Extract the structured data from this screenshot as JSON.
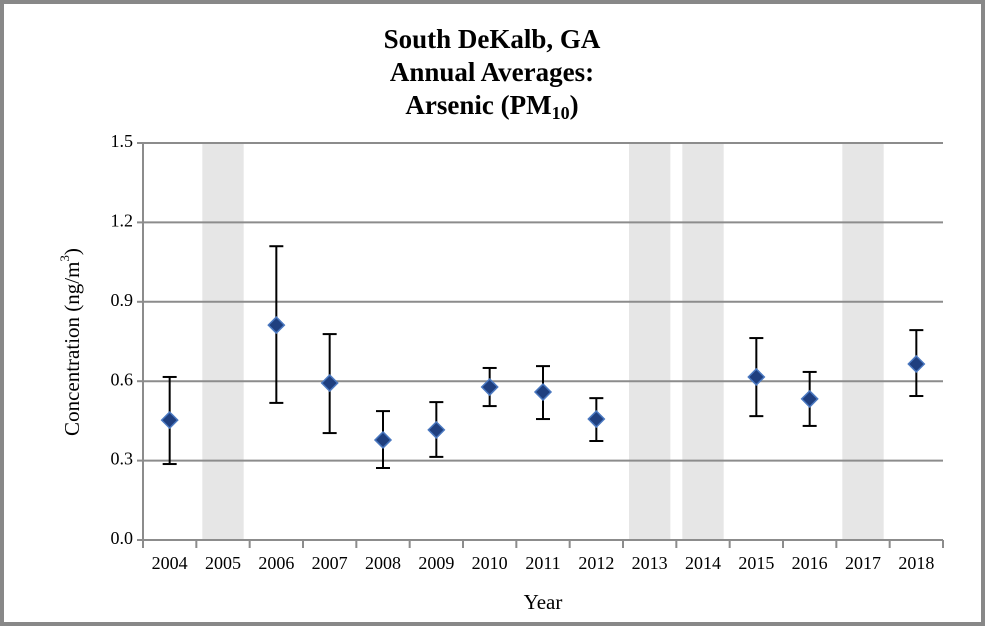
{
  "chart_data": {
    "type": "errorbar-scatter",
    "title_lines": [
      "South DeKalb, GA",
      "Annual Averages:"
    ],
    "title_last": {
      "text": "Arsenic (PM",
      "subscript": "10",
      "suffix": ")"
    },
    "x_label": "Year",
    "y_label": {
      "text": "Concentration (ng/m",
      "superscript": "3",
      "suffix": ")"
    },
    "categories": [
      "2004",
      "2005",
      "2006",
      "2007",
      "2008",
      "2009",
      "2010",
      "2011",
      "2012",
      "2013",
      "2014",
      "2015",
      "2016",
      "2017",
      "2018"
    ],
    "values": [
      0.453,
      null,
      0.812,
      0.593,
      0.378,
      0.416,
      0.578,
      0.559,
      0.457,
      null,
      null,
      0.616,
      0.533,
      null,
      0.665
    ],
    "lower": [
      0.287,
      null,
      0.518,
      0.404,
      0.272,
      0.314,
      0.506,
      0.457,
      0.374,
      null,
      null,
      0.468,
      0.431,
      null,
      0.544
    ],
    "upper": [
      0.616,
      null,
      1.11,
      0.778,
      0.487,
      0.521,
      0.65,
      0.657,
      0.536,
      null,
      null,
      0.763,
      0.635,
      null,
      0.793
    ],
    "color": "#1f3f7f",
    "no_data_color": "#e6e6e6",
    "ylim": [
      0,
      1.5
    ],
    "yticks": [
      {
        "value": 0,
        "label": "0.0"
      },
      0.3,
      0.6,
      0.9,
      1.2,
      1.5
    ],
    "grid": true
  }
}
